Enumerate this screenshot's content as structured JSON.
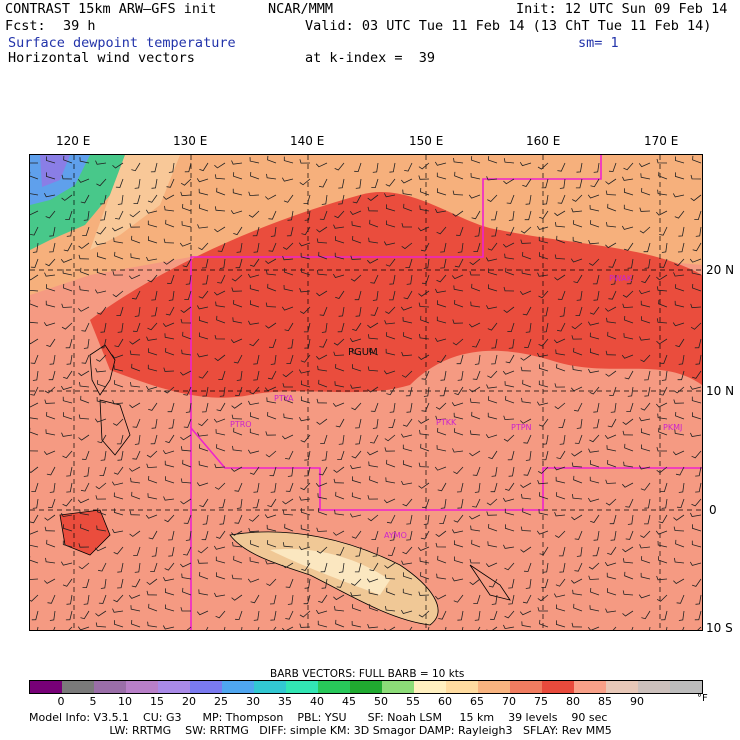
{
  "header": {
    "title": "CONTRAST 15km ARW—GFS init",
    "org": "NCAR/MMM",
    "init": "Init: 12 UTC Sun 09 Feb 14",
    "fcst_label": "Fcst:",
    "fcst_value": "39 h",
    "valid": "Valid: 03 UTC Tue 11 Feb 14 (13 ChT Tue 11 Feb 14)",
    "field1": "Surface dewpoint temperature",
    "smooth": "sm= 1",
    "field2": "Horizontal wind vectors",
    "kindex": "at k-index =  39"
  },
  "map": {
    "lon_labels": [
      "120 E",
      "130 E",
      "140 E",
      "150 E",
      "160 E",
      "170 E"
    ],
    "lat_labels": [
      "20 N",
      "10 N",
      "0",
      "10 S"
    ],
    "stations": [
      "PGUM",
      "PTYA",
      "PTRO",
      "PTKK",
      "PTPN",
      "PKMJ",
      "PWAK",
      "AYMO"
    ],
    "boundary_color": "#ee22cc",
    "grid_color": "#000000"
  },
  "legend": {
    "barb_title": "BARB VECTORS:  FULL BARB = 10 kts",
    "unit": "°F",
    "ticks": [
      "0",
      "5",
      "10",
      "15",
      "20",
      "25",
      "30",
      "35",
      "40",
      "45",
      "50",
      "55",
      "60",
      "65",
      "70",
      "75",
      "80",
      "85",
      "90"
    ],
    "colors": [
      "#770077",
      "#7a7a7a",
      "#9a6ea8",
      "#b87fc8",
      "#a98ae8",
      "#7a7af0",
      "#4fa6f0",
      "#32c8d2",
      "#32e6b4",
      "#28c85a",
      "#20aa30",
      "#8cdc78",
      "#fff0c0",
      "#ffdca0",
      "#f8b480",
      "#f07c60",
      "#e84a3c",
      "#f8a088",
      "#e8c8b8",
      "#ccc0bc",
      "#bcbcbc"
    ]
  },
  "footer": {
    "line1": "Model Info: V3.5.1    CU: G3      MP: Thompson    PBL: YSU      SF: Noah LSM     15 km    39 levels    90 sec",
    "line2": "                       LW: RRTMG    SW: RRTMG   DIFF: simple KM: 3D Smagor DAMP: Rayleigh3   SFLAY: Rev MM5"
  }
}
